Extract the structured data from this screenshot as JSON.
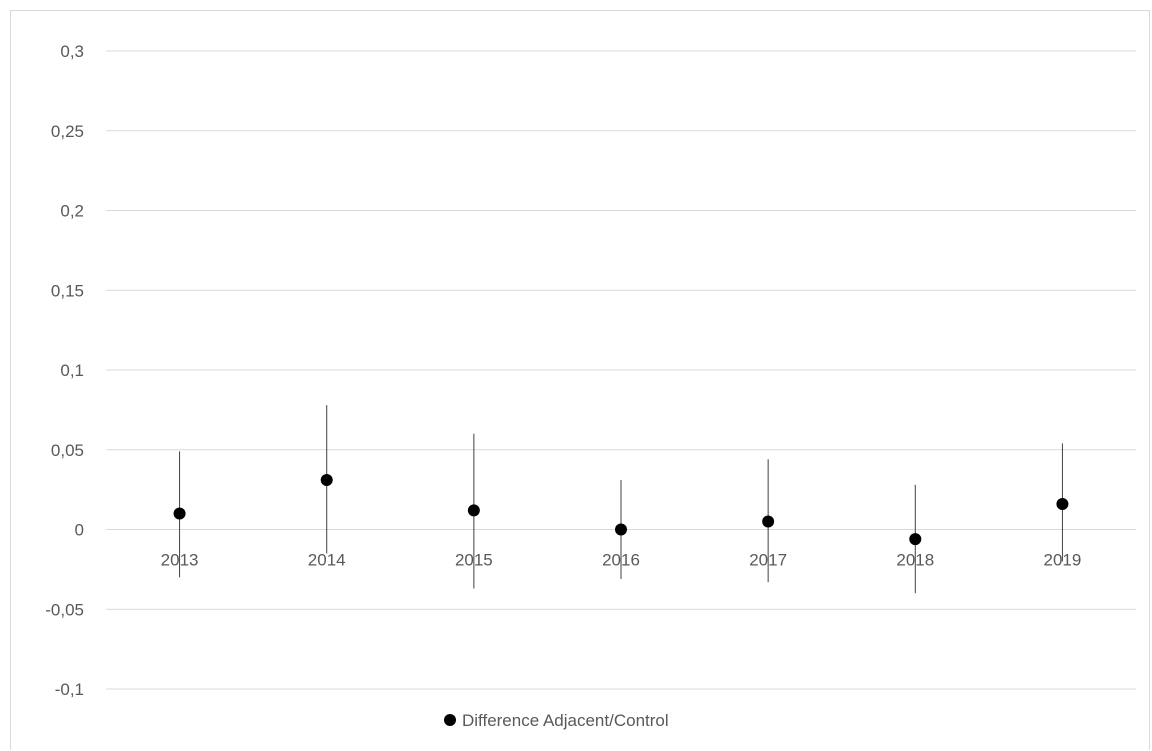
{
  "chart_data": {
    "type": "scatter",
    "title": "",
    "xlabel": "",
    "ylabel": "",
    "ylim": [
      -0.1,
      0.3
    ],
    "y_ticks": [
      {
        "value": 0.3,
        "label": "0,3"
      },
      {
        "value": 0.25,
        "label": "0,25"
      },
      {
        "value": 0.2,
        "label": "0,2"
      },
      {
        "value": 0.15,
        "label": "0,15"
      },
      {
        "value": 0.1,
        "label": "0,1"
      },
      {
        "value": 0.05,
        "label": "0,05"
      },
      {
        "value": 0,
        "label": "0"
      },
      {
        "value": -0.05,
        "label": "-0,05"
      },
      {
        "value": -0.1,
        "label": "-0,1"
      }
    ],
    "grid": true,
    "categories": [
      "2013",
      "2014",
      "2015",
      "2016",
      "2017",
      "2018",
      "2019"
    ],
    "series": [
      {
        "name": "Difference Adjacent/Control",
        "color": "#000000",
        "values": [
          0.01,
          0.031,
          0.012,
          0.0,
          0.005,
          -0.006,
          0.016
        ],
        "error_low": [
          -0.03,
          -0.015,
          -0.037,
          -0.031,
          -0.033,
          -0.04,
          -0.02
        ],
        "error_high": [
          0.049,
          0.078,
          0.06,
          0.031,
          0.044,
          0.028,
          0.054
        ]
      }
    ],
    "legend": {
      "position": "bottom"
    }
  }
}
